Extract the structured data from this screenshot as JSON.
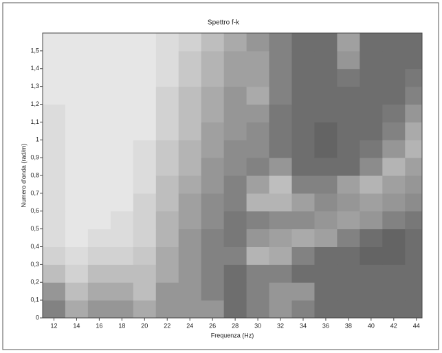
{
  "chart_data": {
    "type": "heatmap",
    "title": "Spettro f-k",
    "x_label": "Frequenza (Hz)",
    "y_label": "Numero d'onda (rad/m)",
    "xlim": [
      11,
      44.5
    ],
    "ylim": [
      0,
      1.6
    ],
    "xticks": [
      12,
      14,
      16,
      18,
      20,
      22,
      24,
      26,
      28,
      30,
      32,
      34,
      36,
      38,
      40,
      42,
      44
    ],
    "yticks": [
      0,
      {
        "value": 0.1,
        "label": "0,1"
      },
      {
        "value": 0.2,
        "label": "0,2"
      },
      {
        "value": 0.3,
        "label": "0,3"
      },
      {
        "value": 0.4,
        "label": "0,4"
      },
      {
        "value": 0.5,
        "label": "0,5"
      },
      {
        "value": 0.6,
        "label": "0,6"
      },
      {
        "value": 0.7,
        "label": "0,7"
      },
      {
        "value": 0.8,
        "label": "0,8"
      },
      {
        "value": 0.9,
        "label": "0,9"
      },
      1,
      {
        "value": 1.1,
        "label": "1,1"
      },
      {
        "value": 1.2,
        "label": "1,2"
      },
      {
        "value": 1.3,
        "label": "1,3"
      },
      {
        "value": 1.4,
        "label": "1,4"
      },
      {
        "value": 1.5,
        "label": "1,5"
      }
    ],
    "x_bins": [
      11,
      13,
      15,
      17,
      19,
      21,
      23,
      25,
      27,
      29,
      31,
      33,
      35,
      37,
      39,
      41,
      43,
      44.5
    ],
    "y_bins": [
      0,
      0.1,
      0.2,
      0.3,
      0.4,
      0.5,
      0.6,
      0.7,
      0.8,
      0.9,
      1,
      1.1,
      1.2,
      1.3,
      1.4,
      1.5,
      1.6
    ],
    "z": [
      [
        0.6,
        0.4,
        0.5,
        0.5,
        0.4,
        0.5,
        0.5,
        0.5,
        0.7,
        0.6,
        0.5,
        0.6,
        0.7,
        0.7,
        0.7,
        0.7,
        0.7
      ],
      [
        0.5,
        0.3,
        0.4,
        0.4,
        0.3,
        0.5,
        0.5,
        0.6,
        0.7,
        0.6,
        0.5,
        0.5,
        0.7,
        0.7,
        0.7,
        0.7,
        0.7
      ],
      [
        0.3,
        0.2,
        0.3,
        0.3,
        0.3,
        0.4,
        0.5,
        0.6,
        0.7,
        0.6,
        0.6,
        0.7,
        0.7,
        0.7,
        0.7,
        0.7,
        0.7
      ],
      [
        0.2,
        0.15,
        0.2,
        0.2,
        0.25,
        0.4,
        0.5,
        0.6,
        0.6,
        0.35,
        0.4,
        0.6,
        0.7,
        0.7,
        0.75,
        0.75,
        0.7
      ],
      [
        0.15,
        0.1,
        0.15,
        0.15,
        0.2,
        0.35,
        0.5,
        0.6,
        0.65,
        0.5,
        0.45,
        0.4,
        0.45,
        0.6,
        0.7,
        0.75,
        0.7
      ],
      [
        0.15,
        0.1,
        0.1,
        0.15,
        0.2,
        0.35,
        0.45,
        0.55,
        0.65,
        0.6,
        0.55,
        0.55,
        0.5,
        0.45,
        0.5,
        0.6,
        0.65
      ],
      [
        0.15,
        0.1,
        0.1,
        0.1,
        0.2,
        0.3,
        0.45,
        0.55,
        0.6,
        0.35,
        0.35,
        0.45,
        0.55,
        0.5,
        0.45,
        0.5,
        0.55
      ],
      [
        0.15,
        0.1,
        0.1,
        0.1,
        0.15,
        0.3,
        0.4,
        0.5,
        0.6,
        0.45,
        0.3,
        0.6,
        0.6,
        0.45,
        0.35,
        0.45,
        0.5
      ],
      [
        0.15,
        0.1,
        0.1,
        0.1,
        0.15,
        0.25,
        0.35,
        0.5,
        0.55,
        0.6,
        0.5,
        0.7,
        0.7,
        0.7,
        0.55,
        0.35,
        0.45
      ],
      [
        0.15,
        0.1,
        0.1,
        0.1,
        0.15,
        0.25,
        0.35,
        0.45,
        0.55,
        0.55,
        0.65,
        0.7,
        0.75,
        0.7,
        0.65,
        0.5,
        0.35
      ],
      [
        0.15,
        0.1,
        0.1,
        0.1,
        0.1,
        0.2,
        0.3,
        0.45,
        0.5,
        0.55,
        0.65,
        0.7,
        0.75,
        0.7,
        0.7,
        0.6,
        0.4
      ],
      [
        0.15,
        0.1,
        0.1,
        0.1,
        0.1,
        0.2,
        0.3,
        0.4,
        0.5,
        0.5,
        0.65,
        0.7,
        0.7,
        0.7,
        0.7,
        0.65,
        0.5
      ],
      [
        0.1,
        0.1,
        0.1,
        0.1,
        0.1,
        0.2,
        0.3,
        0.4,
        0.5,
        0.4,
        0.6,
        0.7,
        0.7,
        0.7,
        0.7,
        0.7,
        0.6
      ],
      [
        0.1,
        0.1,
        0.1,
        0.1,
        0.1,
        0.15,
        0.25,
        0.35,
        0.45,
        0.45,
        0.6,
        0.7,
        0.7,
        0.65,
        0.7,
        0.7,
        0.65
      ],
      [
        0.1,
        0.1,
        0.1,
        0.1,
        0.1,
        0.15,
        0.25,
        0.35,
        0.45,
        0.45,
        0.6,
        0.7,
        0.7,
        0.5,
        0.7,
        0.7,
        0.7
      ],
      [
        0.1,
        0.1,
        0.1,
        0.1,
        0.1,
        0.15,
        0.2,
        0.3,
        0.4,
        0.5,
        0.6,
        0.7,
        0.7,
        0.45,
        0.7,
        0.7,
        0.7
      ]
    ]
  }
}
